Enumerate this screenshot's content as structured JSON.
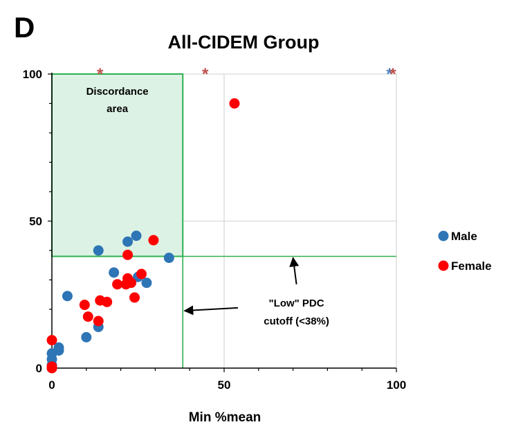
{
  "panel_label": "D",
  "chart_data": {
    "type": "scatter",
    "title": "All-CIDEM Group",
    "xlabel": "Min %mean",
    "ylabel": "",
    "xlim": [
      0,
      100
    ],
    "ylim": [
      0,
      100
    ],
    "x_ticks": [
      "0",
      "50",
      "100"
    ],
    "y_ticks": [
      "0",
      "50",
      "100"
    ],
    "grid": true,
    "legend_position": "right",
    "series": [
      {
        "name": "Male",
        "color": "#2e75b6",
        "points": [
          [
            0,
            0
          ],
          [
            0,
            1
          ],
          [
            0,
            3
          ],
          [
            0,
            5
          ],
          [
            2,
            6
          ],
          [
            2,
            7
          ],
          [
            4.5,
            24.5
          ],
          [
            10,
            10.5
          ],
          [
            13.5,
            14
          ],
          [
            13.5,
            40
          ],
          [
            18,
            32.5
          ],
          [
            22,
            43
          ],
          [
            24.5,
            45
          ],
          [
            25,
            31
          ],
          [
            27.5,
            29
          ],
          [
            34,
            37.5
          ]
        ]
      },
      {
        "name": "Female",
        "color": "#ff0000",
        "points": [
          [
            0,
            0
          ],
          [
            0,
            0.5
          ],
          [
            0,
            9.5
          ],
          [
            9.5,
            21.5
          ],
          [
            10.5,
            17.5
          ],
          [
            13.5,
            16
          ],
          [
            14,
            23
          ],
          [
            16,
            22.5
          ],
          [
            19,
            28.5
          ],
          [
            21.5,
            28.5
          ],
          [
            22,
            30.5
          ],
          [
            22,
            38.5
          ],
          [
            23,
            29
          ],
          [
            24,
            24
          ],
          [
            26,
            32
          ],
          [
            29.5,
            43.5
          ],
          [
            53,
            90
          ]
        ]
      }
    ],
    "asterisks": [
      {
        "x": 14,
        "color": "#c0504d"
      },
      {
        "x": 44.5,
        "color": "#c0504d"
      },
      {
        "x": 98,
        "color": "#4f81bd"
      },
      {
        "x": 99,
        "color": "#c0504d"
      }
    ],
    "discordance_area": {
      "x_range": [
        0,
        38
      ],
      "y_range": [
        38,
        100
      ],
      "label_lines": [
        "Discordance",
        "area"
      ]
    },
    "cutoff": {
      "value": 38,
      "label_lines": [
        "\"Low\" PDC",
        "cutoff (<38%)"
      ]
    }
  }
}
